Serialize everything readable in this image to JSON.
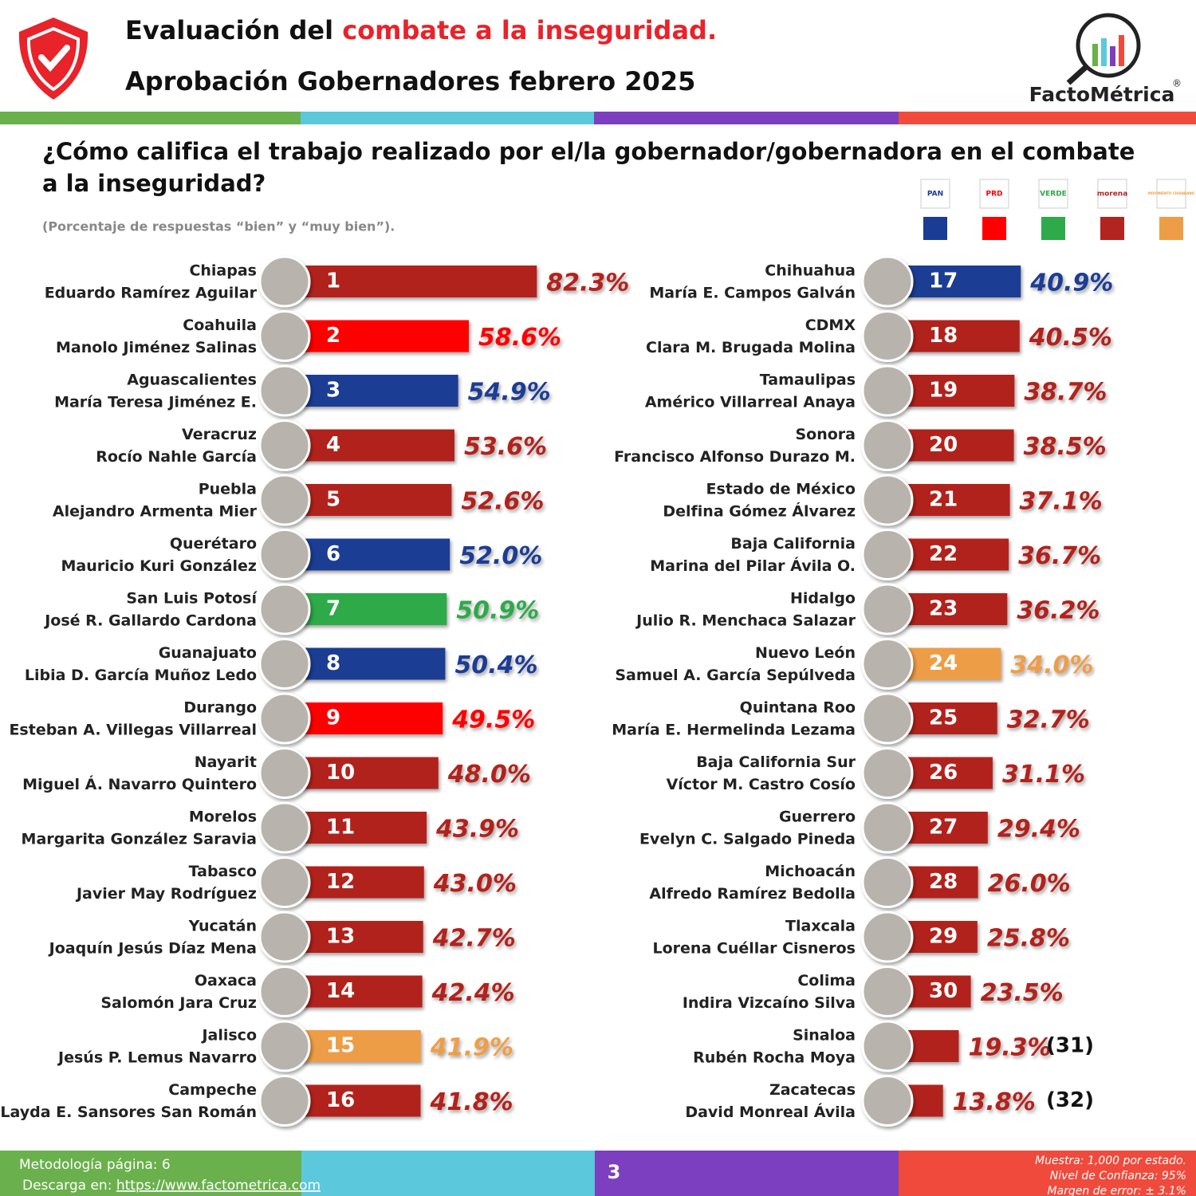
{
  "header": {
    "title_start": "Evaluación del ",
    "title_highlight": "combate a la inseguridad.",
    "subtitle": "Aprobación Gobernadores febrero 2025",
    "logo_text": "FactoMétrica",
    "logo_mark": "®"
  },
  "chart_data": {
    "type": "bar",
    "title": [
      "¿Cómo califica el trabajo realizado por el/la gobernador/gobernadora en el combate",
      "a la inseguridad?"
    ],
    "subtitle": "(Porcentaje de respuestas “bien” y “muy bien”).",
    "legend": [
      {
        "name": "PAN",
        "color": "#1b3c94"
      },
      {
        "name": "PRD",
        "color": "#ff0000"
      },
      {
        "name": "VERDE",
        "color": "#2eaa4a"
      },
      {
        "name": "morena",
        "color": "#b2241f"
      },
      {
        "name": "MOVIMIENTO CIUDADANO",
        "color": "#ee9d47"
      }
    ],
    "categories": [
      "Chiapas",
      "Coahuila",
      "Aguascalientes",
      "Veracruz",
      "Puebla",
      "Querétaro",
      "San Luis Potosí",
      "Guanajuato",
      "Durango",
      "Nayarit",
      "Morelos",
      "Tabasco",
      "Yucatán",
      "Oaxaca",
      "Jalisco",
      "Campeche",
      "Chihuahua",
      "CDMX",
      "Tamaulipas",
      "Sonora",
      "Estado de México",
      "Baja California",
      "Hidalgo",
      "Nuevo León",
      "Quintana Roo",
      "Baja California Sur",
      "Guerrero",
      "Michoacán",
      "Tlaxcala",
      "Colima",
      "Sinaloa",
      "Zacatecas"
    ],
    "governors": [
      "Eduardo Ramírez Aguilar",
      "Manolo Jiménez Salinas",
      "María Teresa Jiménez E.",
      "Rocío Nahle García",
      "Alejandro Armenta Mier",
      "Mauricio Kuri González",
      "José R. Gallardo Cardona",
      "Libia D. García Muñoz Ledo",
      "Esteban A. Villegas Villarreal",
      "Miguel Á. Navarro Quintero",
      "Margarita González Saravia",
      "Javier May Rodríguez",
      "Joaquín Jesús Díaz Mena",
      "Salomón Jara Cruz",
      "Jesús P. Lemus Navarro",
      "Layda E. Sansores San Román",
      "María E. Campos Galván",
      "Clara M. Brugada Molina",
      "Américo Villarreal Anaya",
      "Francisco Alfonso Durazo M.",
      "Delfina Gómez Álvarez",
      "Marina del Pilar Ávila O.",
      "Julio R. Menchaca Salazar",
      "Samuel A. García Sepúlveda",
      "María E. Hermelinda Lezama",
      "Víctor M. Castro Cosío",
      "Evelyn C. Salgado Pineda",
      "Alfredo Ramírez Bedolla",
      "Lorena Cuéllar Cisneros",
      "Indira Vizcaíno Silva",
      "Rubén Rocha Moya",
      "David Monreal Ávila"
    ],
    "ranks": [
      1,
      2,
      3,
      4,
      5,
      6,
      7,
      8,
      9,
      10,
      11,
      12,
      13,
      14,
      15,
      16,
      17,
      18,
      19,
      20,
      21,
      22,
      23,
      24,
      25,
      26,
      27,
      28,
      29,
      30,
      {
        "value": 31,
        "label": "(31)"
      },
      {
        "value": 32,
        "label": "(32)"
      }
    ],
    "values": [
      82.3,
      58.6,
      54.9,
      53.6,
      52.6,
      52.0,
      50.9,
      50.4,
      49.5,
      48.0,
      43.9,
      43.0,
      42.7,
      42.4,
      41.9,
      41.8,
      40.9,
      40.5,
      38.7,
      38.5,
      37.1,
      36.7,
      36.2,
      34.0,
      32.7,
      31.1,
      29.4,
      26.0,
      25.8,
      23.5,
      19.3,
      13.8
    ],
    "value_labels": [
      "82.3%",
      "58.6%",
      "54.9%",
      "53.6%",
      "52.6%",
      "52.0%",
      "50.9%",
      "50.4%",
      "49.5%",
      "48.0%",
      "43.9%",
      "43.0%",
      "42.7%",
      "42.4%",
      "41.9%",
      "41.8%",
      "40.9%",
      "40.5%",
      "38.7%",
      "38.5%",
      "37.1%",
      "36.7%",
      "36.2%",
      "34.0%",
      "32.7%",
      "31.1%",
      "29.4%",
      "26.0%",
      "25.8%",
      "23.5%",
      "19.3%",
      "13.8%"
    ],
    "colors": [
      "#b2241f",
      "#ff0000",
      "#1b3c94",
      "#b2241f",
      "#b2241f",
      "#1b3c94",
      "#2eaa4a",
      "#1b3c94",
      "#ff0000",
      "#b2241f",
      "#b2241f",
      "#b2241f",
      "#b2241f",
      "#b2241f",
      "#ee9d47",
      "#b2241f",
      "#1b3c94",
      "#b2241f",
      "#b2241f",
      "#b2241f",
      "#b2241f",
      "#b2241f",
      "#b2241f",
      "#ee9d47",
      "#b2241f",
      "#b2241f",
      "#b2241f",
      "#b2241f",
      "#b2241f",
      "#b2241f",
      "#b2241f",
      "#b2241f"
    ]
  },
  "footer": {
    "methodology": "Metodología página: 6",
    "download": "Descarga en: ",
    "url": "https://www.factometrica.com",
    "page": "3",
    "sample": "Muestra:  1,000 por estado.",
    "confidence": "Nivel de Confianza: 95%",
    "error": "Margen de error: ± 3.1%"
  }
}
